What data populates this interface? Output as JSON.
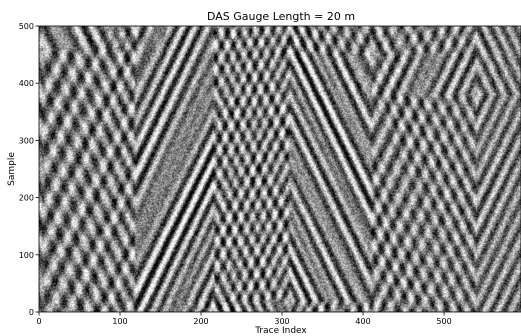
{
  "chart_data": {
    "type": "heatmap",
    "title": "DAS Gauge Length = 20 m",
    "xlabel": "Trace Index",
    "ylabel": "Sample",
    "xlim": [
      0,
      595
    ],
    "ylim": [
      0,
      500
    ],
    "x_ticks": [
      0,
      100,
      200,
      300,
      400,
      500
    ],
    "y_ticks": [
      0,
      100,
      200,
      300,
      400,
      500
    ],
    "colormap": "gray",
    "grid": false,
    "legend": "none",
    "events": [
      {
        "apex_trace": 5,
        "apex_sample": 460,
        "spacing": 60
      },
      {
        "apex_trace": 120,
        "apex_sample": 500,
        "spacing": 45
      },
      {
        "apex_trace": 215,
        "apex_sample": 0,
        "spacing": 38
      },
      {
        "apex_trace": 310,
        "apex_sample": 20,
        "spacing": 35
      },
      {
        "apex_trace": 410,
        "apex_sample": 450,
        "spacing": 50
      },
      {
        "apex_trace": 540,
        "apex_sample": 380,
        "spacing": 40
      }
    ]
  }
}
